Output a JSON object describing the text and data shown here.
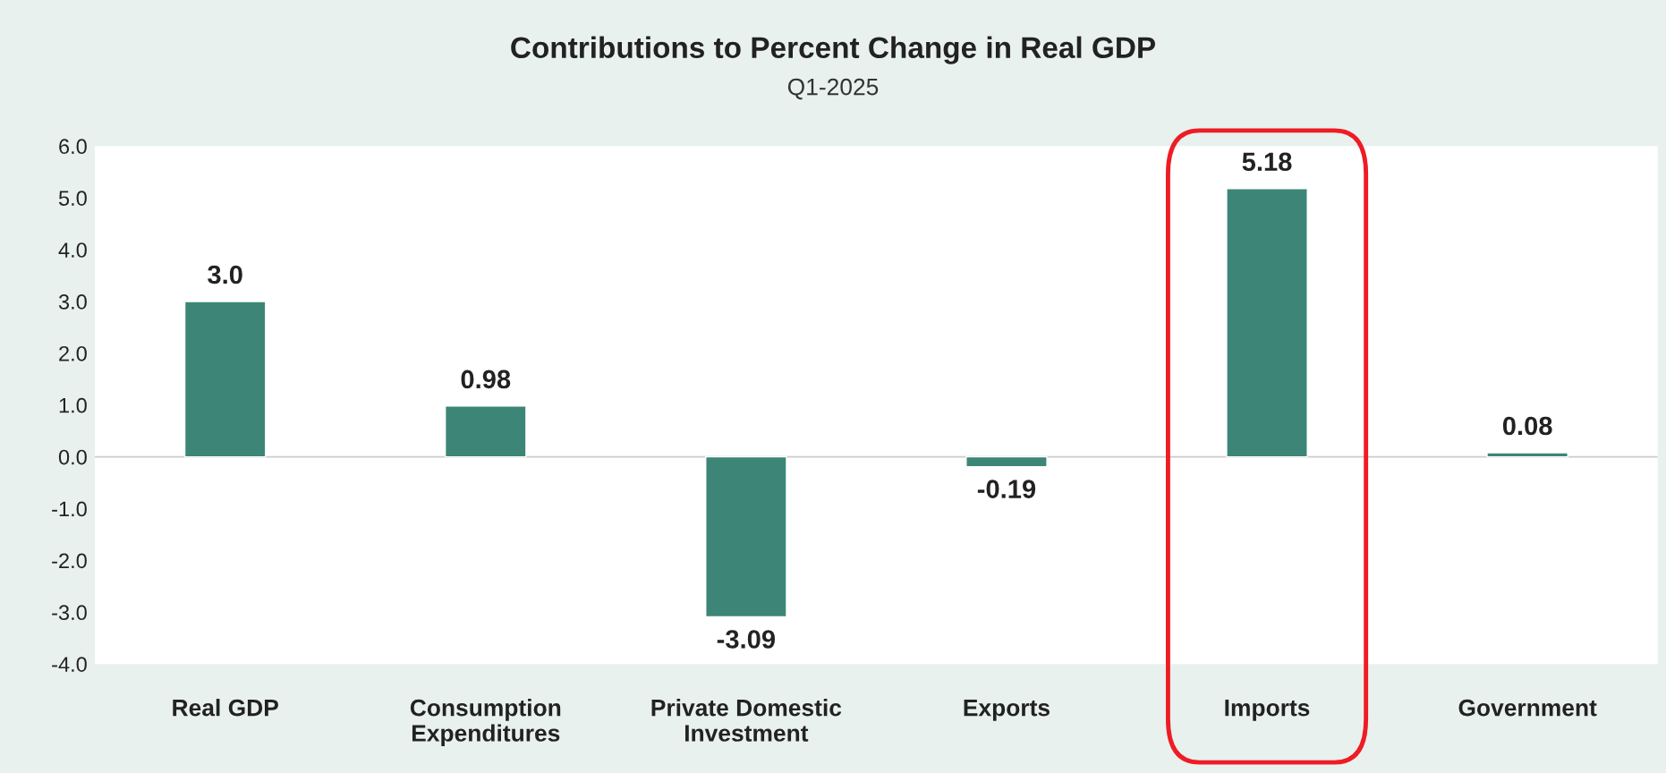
{
  "chart_data": {
    "type": "bar",
    "title": "Contributions to Percent Change in Real GDP",
    "subtitle": "Q1-2025",
    "categories": [
      "Real GDP",
      "Consumption\nExpenditures",
      "Private Domestic\nInvestment",
      "Exports",
      "Imports",
      "Government"
    ],
    "values": [
      3.0,
      0.98,
      -3.09,
      -0.19,
      5.18,
      0.08
    ],
    "value_labels": [
      "3.0",
      "0.98",
      "-3.09",
      "-0.19",
      "5.18",
      "0.08"
    ],
    "color": "#3d8677",
    "ylim": [
      -4,
      6
    ],
    "yticks": [
      {
        "value": -4,
        "label": "-4.0"
      },
      {
        "value": -3,
        "label": "-3.0"
      },
      {
        "value": -2,
        "label": "-2.0"
      },
      {
        "value": -1,
        "label": "-1.0"
      },
      {
        "value": 0,
        "label": "0.0"
      },
      {
        "value": 1,
        "label": "1.0"
      },
      {
        "value": 2,
        "label": "2.0"
      },
      {
        "value": 3,
        "label": "3.0"
      },
      {
        "value": 4,
        "label": "4.0"
      },
      {
        "value": 5,
        "label": "5.0"
      },
      {
        "value": 6,
        "label": "6.0"
      }
    ],
    "ref_lines": [
      {
        "axis": "y",
        "value": 0,
        "color": "#cccccc"
      }
    ]
  }
}
